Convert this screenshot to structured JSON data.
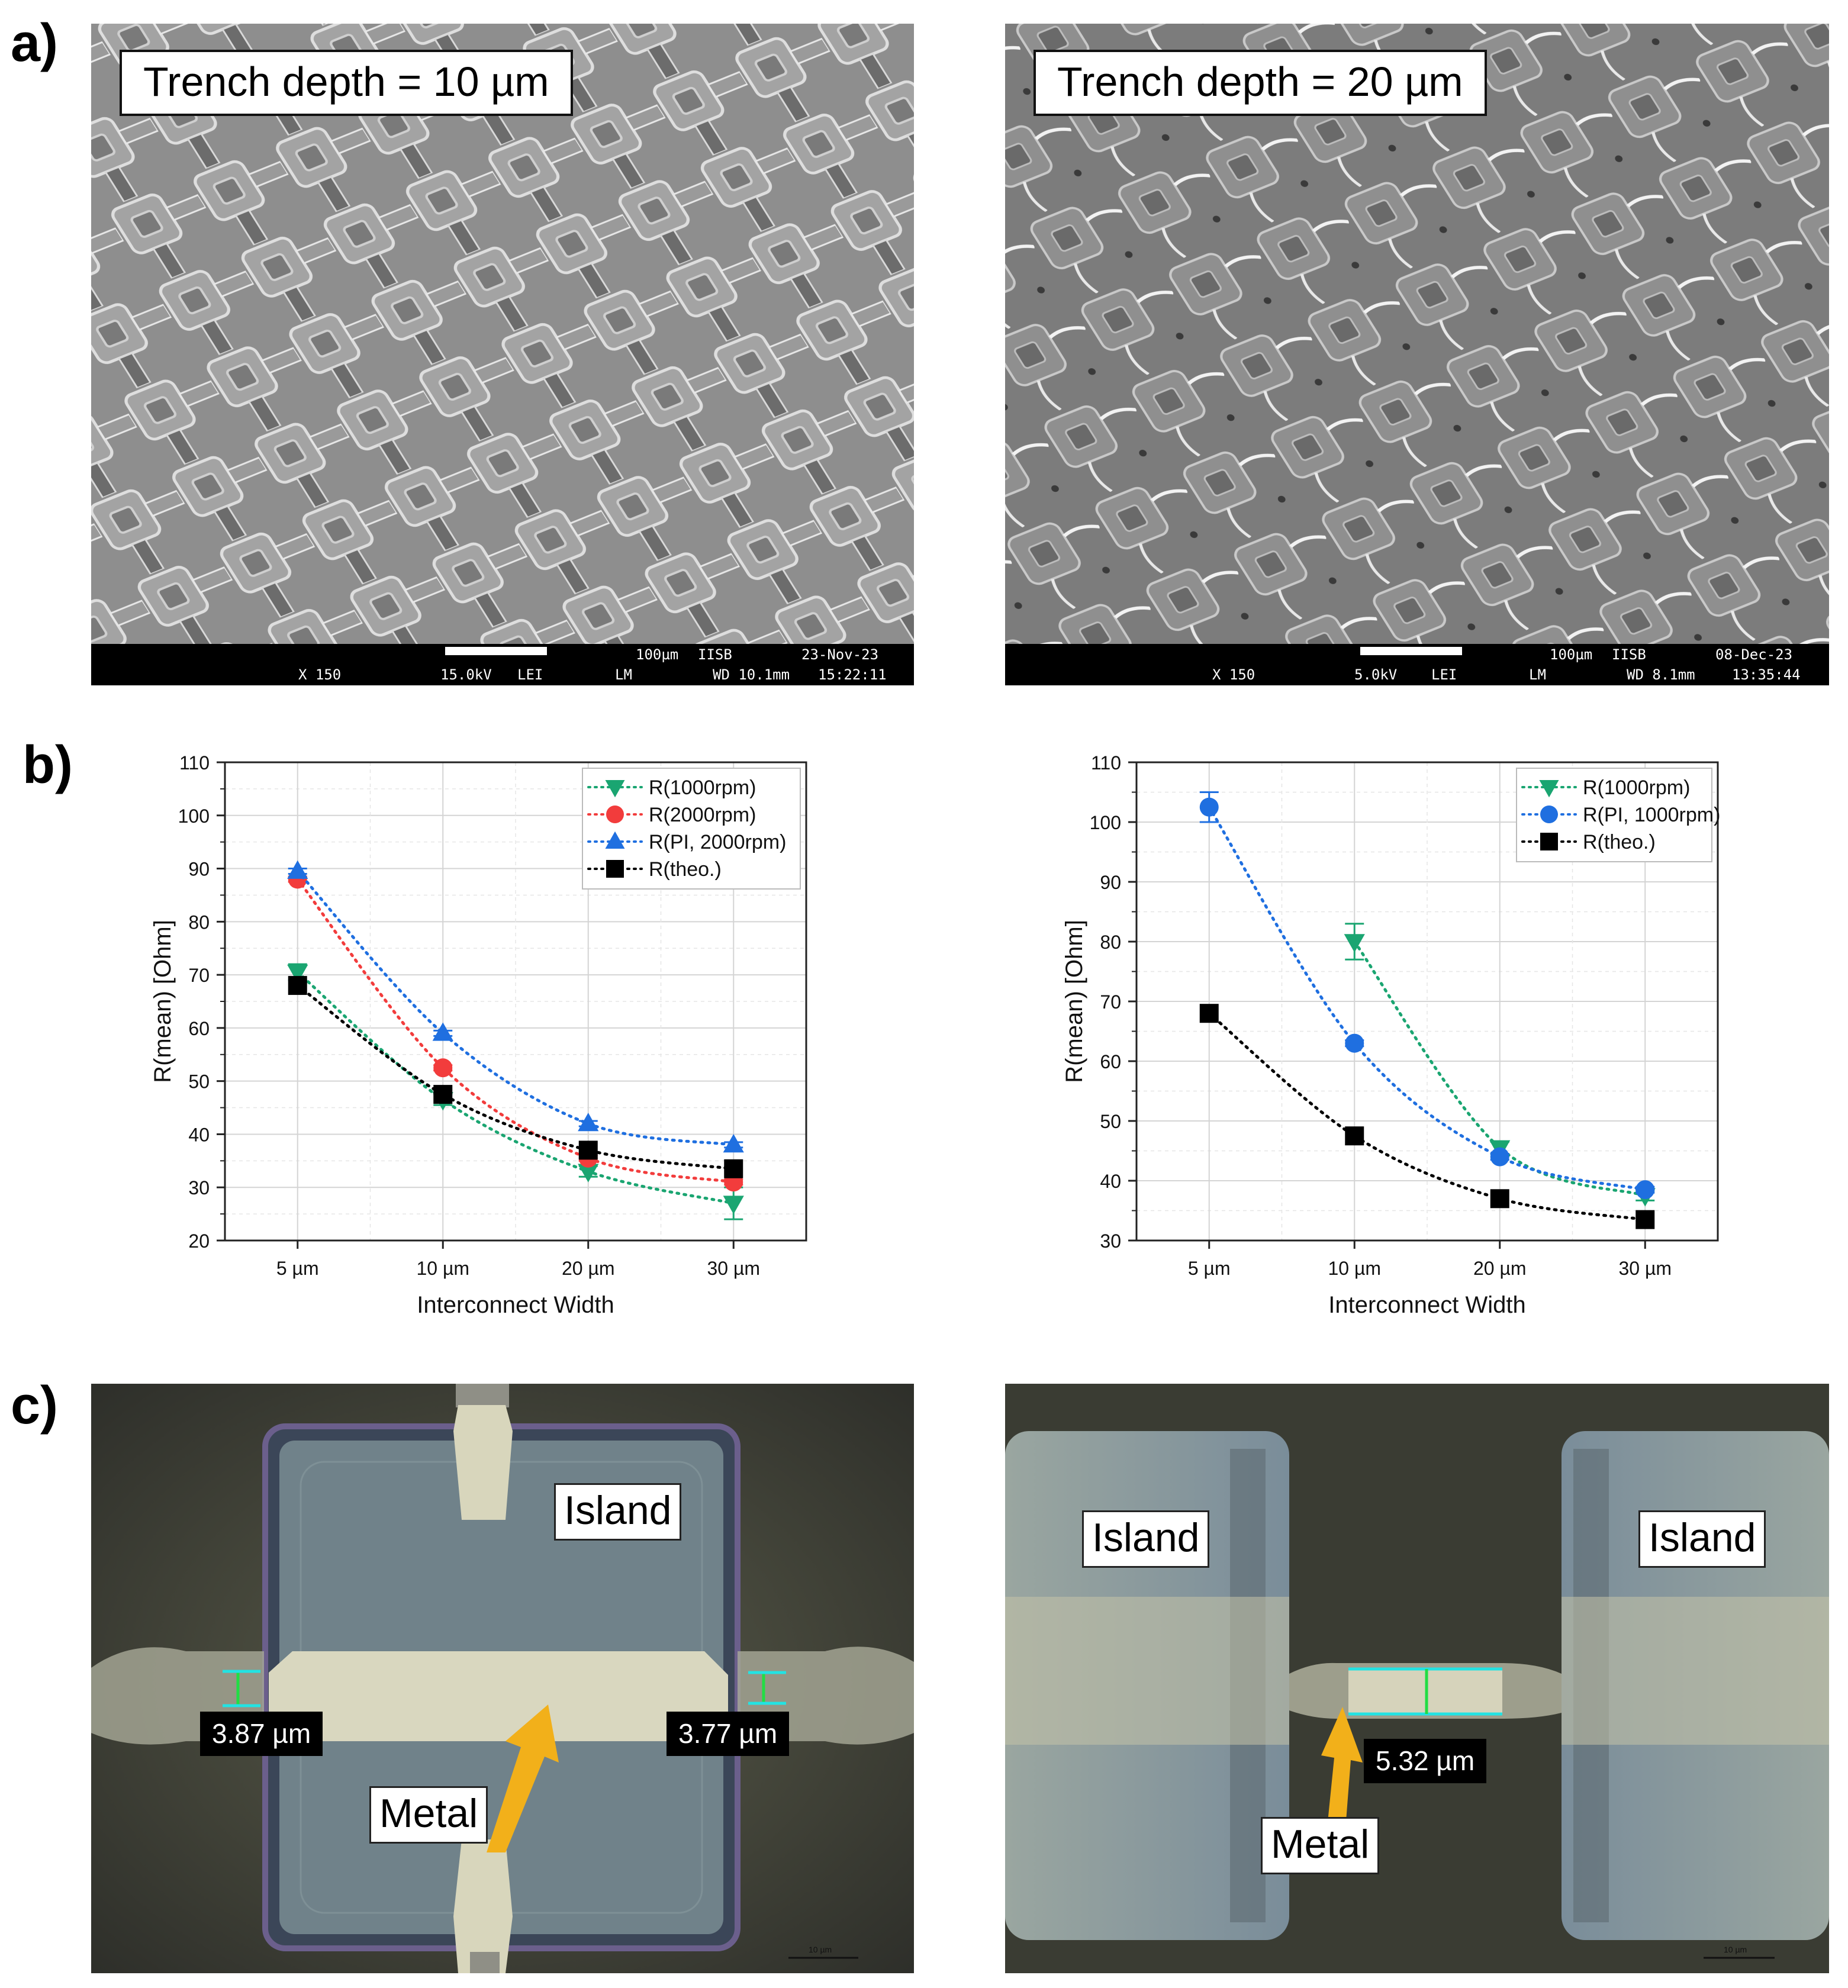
{
  "panels": {
    "a": {
      "letter": "a)",
      "images": [
        {
          "caption": "Trench depth = 10 µm",
          "info": {
            "mag": "X 150",
            "kv": "15.0kV",
            "mode": "LEI",
            "scale": "100µm",
            "org": "IISB",
            "det": "LM",
            "wd": "WD 10.1mm",
            "date": "23-Nov-23",
            "time": "15:22:11"
          }
        },
        {
          "caption": "Trench depth = 20 µm",
          "info": {
            "mag": "X 150",
            "kv": "5.0kV",
            "mode": "LEI",
            "scale": "100µm",
            "org": "IISB",
            "det": "LM",
            "wd": "WD 8.1mm",
            "date": "08-Dec-23",
            "time": "13:35:44"
          }
        }
      ]
    },
    "b": {
      "letter": "b)"
    },
    "c": {
      "letter": "c)",
      "left": {
        "island": "Island",
        "metal": "Metal",
        "dim_left": "3.87 µm",
        "dim_right": "3.77 µm",
        "scalebar": "10 µm"
      },
      "right": {
        "island_left": "Island",
        "island_right": "Island",
        "metal": "Metal",
        "dim": "5.32 µm",
        "scalebar": "10 µm"
      }
    }
  },
  "colors": {
    "green": "#1aa571",
    "red": "#f23c3c",
    "blue": "#1f6fe0",
    "black": "#000000"
  },
  "chart_data": [
    {
      "type": "scatter",
      "title": "",
      "xlabel": "Interconnect Width",
      "ylabel": "R(mean) [Ohm]",
      "categories": [
        "5 µm",
        "10 µm",
        "20 µm",
        "30 µm"
      ],
      "ylim": [
        20,
        110
      ],
      "yticks": [
        20,
        30,
        40,
        50,
        60,
        70,
        80,
        90,
        100,
        110
      ],
      "grid": true,
      "legend": "top-right",
      "series": [
        {
          "name": "R(1000rpm)",
          "marker": "triangle-down",
          "color": "#1aa571",
          "values": [
            70.5,
            46.5,
            33,
            27
          ],
          "errors": [
            1.5,
            1.0,
            1.0,
            3.0
          ]
        },
        {
          "name": "R(2000rpm)",
          "marker": "circle",
          "color": "#f23c3c",
          "values": [
            88,
            52.5,
            35.5,
            31
          ],
          "errors": [
            0.5,
            0.5,
            0.5,
            0.5
          ]
        },
        {
          "name": "R(PI, 2000rpm)",
          "marker": "triangle-up",
          "color": "#1f6fe0",
          "values": [
            89.5,
            59,
            42,
            38
          ],
          "errors": [
            0.5,
            0.5,
            0.5,
            0.5
          ]
        },
        {
          "name": "R(theo.)",
          "marker": "square",
          "color": "#000000",
          "values": [
            68,
            47.5,
            37,
            33.5
          ],
          "errors": [
            0,
            0,
            0,
            0
          ]
        }
      ]
    },
    {
      "type": "scatter",
      "title": "",
      "xlabel": "Interconnect Width",
      "ylabel": "R(mean) [Ohm]",
      "categories": [
        "5 µm",
        "10 µm",
        "20 µm",
        "30 µm"
      ],
      "ylim": [
        30,
        110
      ],
      "yticks": [
        30,
        40,
        50,
        60,
        70,
        80,
        90,
        100,
        110
      ],
      "grid": true,
      "legend": "top-right",
      "series": [
        {
          "name": "R(1000rpm)",
          "marker": "triangle-down",
          "color": "#1aa571",
          "values": [
            null,
            80,
            45.5,
            37.5
          ],
          "errors": [
            0,
            3.0,
            1.0,
            0.8
          ]
        },
        {
          "name": "R(PI, 1000rpm)",
          "marker": "circle",
          "color": "#1f6fe0",
          "values": [
            102.5,
            63,
            44,
            38.5
          ],
          "errors": [
            2.5,
            0.5,
            0.5,
            0.5
          ]
        },
        {
          "name": "R(theo.)",
          "marker": "square",
          "color": "#000000",
          "values": [
            68,
            47.5,
            37,
            33.5
          ],
          "errors": [
            0,
            0,
            0,
            0
          ]
        }
      ]
    }
  ]
}
